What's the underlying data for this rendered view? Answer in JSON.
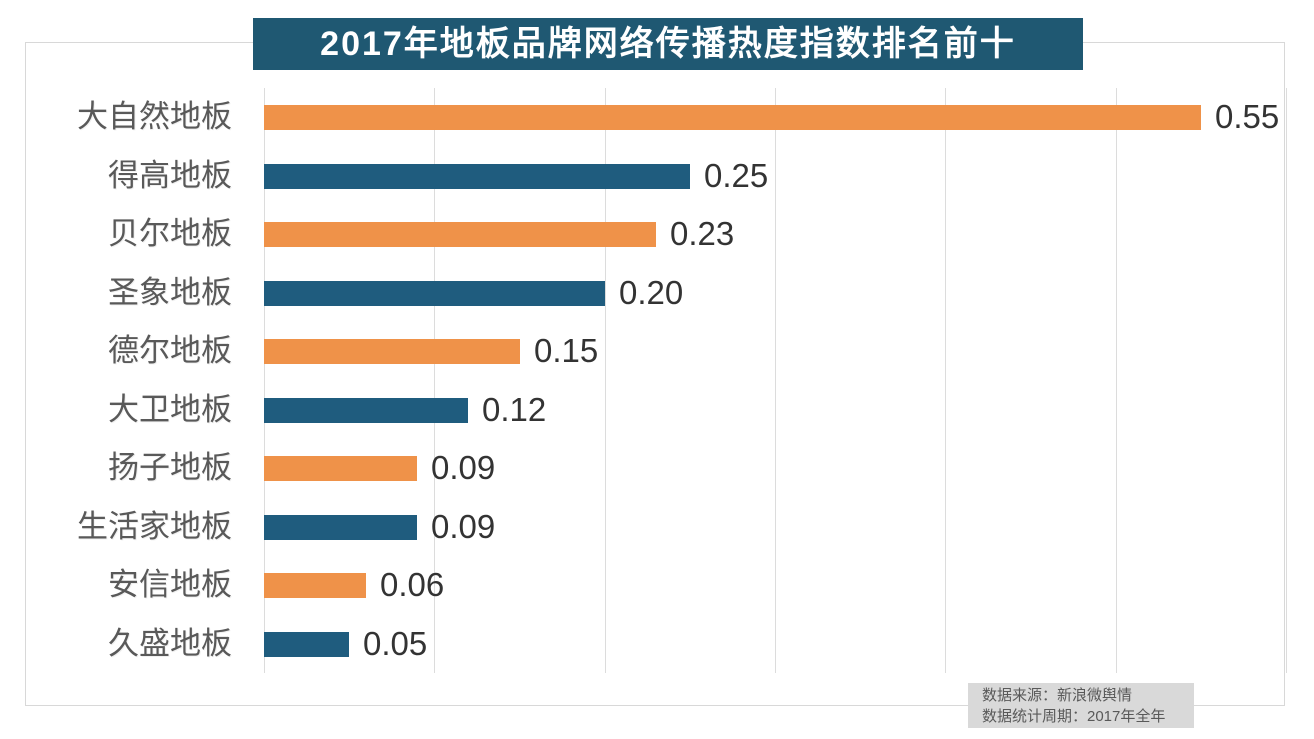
{
  "title": "2017年地板品牌网络传播热度指数排名前十",
  "colors": {
    "title_bg": "#1f5872",
    "title_text": "#ffffff",
    "bar_orange": "#ef9249",
    "bar_teal": "#1f5c7e",
    "label_text": "#595959",
    "value_text": "#333333",
    "gridline": "#dcdcdc",
    "frame_border": "#d8d8d8",
    "footer_bg": "#d9d9d9",
    "footer_text": "#595959"
  },
  "chart_data": {
    "type": "bar",
    "orientation": "horizontal",
    "title": "2017年地板品牌网络传播热度指数排名前十",
    "categories": [
      "大自然地板",
      "得高地板",
      "贝尔地板",
      "圣象地板",
      "德尔地板",
      "大卫地板",
      "扬子地板",
      "生活家地板",
      "安信地板",
      "久盛地板"
    ],
    "values": [
      0.55,
      0.25,
      0.23,
      0.2,
      0.15,
      0.12,
      0.09,
      0.09,
      0.06,
      0.05
    ],
    "value_labels": [
      "0.55",
      "0.25",
      "0.23",
      "0.20",
      "0.15",
      "0.12",
      "0.09",
      "0.09",
      "0.06",
      "0.05"
    ],
    "bar_color_pattern": [
      "orange",
      "teal"
    ],
    "xlabel": "",
    "ylabel": "",
    "xlim": [
      0,
      0.6
    ],
    "x_gridlines": [
      0,
      0.1,
      0.2,
      0.3,
      0.4,
      0.5,
      0.6
    ],
    "grid": true,
    "legend": false
  },
  "footer": {
    "line1": "数据来源：新浪微舆情",
    "line2": "数据统计周期：2017年全年"
  }
}
